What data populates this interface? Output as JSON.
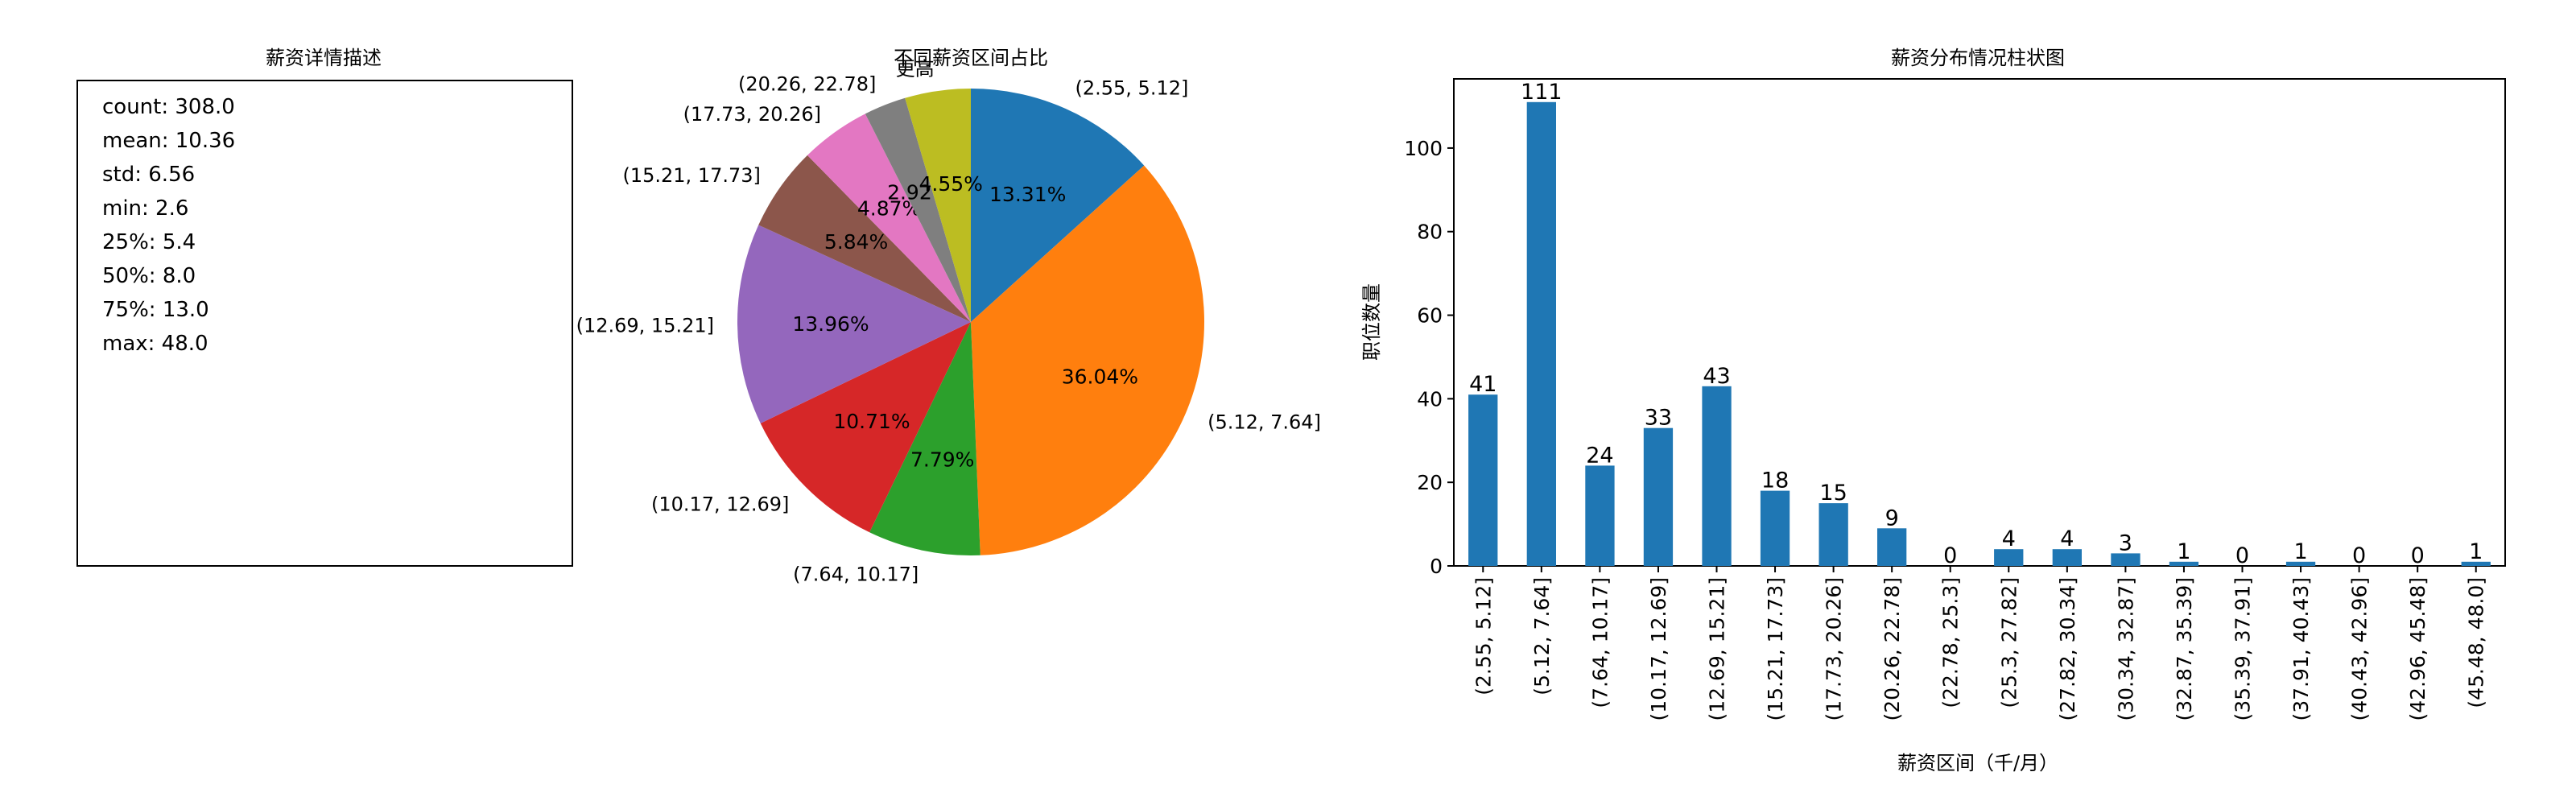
{
  "stats_panel": {
    "title": "薪资详情描述",
    "lines": [
      "count: 308.0",
      "mean: 10.36",
      "std: 6.56",
      "min: 2.6",
      "25%: 5.4",
      "50%: 8.0",
      "75%: 13.0",
      "max: 48.0"
    ]
  },
  "chart_data": [
    {
      "type": "pie",
      "title": "不同薪资区间占比",
      "labels": [
        "(2.55, 5.12]",
        "(5.12, 7.64]",
        "(7.64, 10.17]",
        "(10.17, 12.69]",
        "(12.69, 15.21]",
        "(15.21, 17.73]",
        "(17.73, 20.26]",
        "(20.26, 22.78]",
        "更高"
      ],
      "values": [
        13.31,
        36.04,
        7.79,
        10.71,
        13.96,
        5.84,
        4.87,
        2.92,
        4.55
      ],
      "pct_labels": [
        "13.31%",
        "36.04%",
        "7.79%",
        "10.71%",
        "13.96%",
        "5.84%",
        "4.87%",
        "2.92%",
        "4.55%"
      ],
      "colors": [
        "#1f77b4",
        "#ff7f0e",
        "#2ca02c",
        "#d62728",
        "#9467bd",
        "#8c564b",
        "#e377c2",
        "#7f7f7f",
        "#bcbd22"
      ],
      "start_angle_deg": 90,
      "direction": "clockwise"
    },
    {
      "type": "bar",
      "title": "薪资分布情况柱状图",
      "xlabel": "薪资区间（千/月）",
      "ylabel": "职位数量",
      "categories": [
        "(2.55, 5.12]",
        "(5.12, 7.64]",
        "(7.64, 10.17]",
        "(10.17, 12.69]",
        "(12.69, 15.21]",
        "(15.21, 17.73]",
        "(17.73, 20.26]",
        "(20.26, 22.78]",
        "(22.78, 25.3]",
        "(25.3, 27.82]",
        "(27.82, 30.34]",
        "(30.34, 32.87]",
        "(32.87, 35.39]",
        "(35.39, 37.91]",
        "(37.91, 40.43]",
        "(40.43, 42.96]",
        "(42.96, 45.48]",
        "(45.48, 48.0]"
      ],
      "values": [
        41,
        111,
        24,
        33,
        43,
        18,
        15,
        9,
        0,
        4,
        4,
        3,
        1,
        0,
        1,
        0,
        0,
        1
      ],
      "yticks": [
        0,
        20,
        40,
        60,
        80,
        100
      ],
      "ylim": [
        0,
        116.55
      ],
      "color": "#1f77b4",
      "grid": false
    }
  ]
}
